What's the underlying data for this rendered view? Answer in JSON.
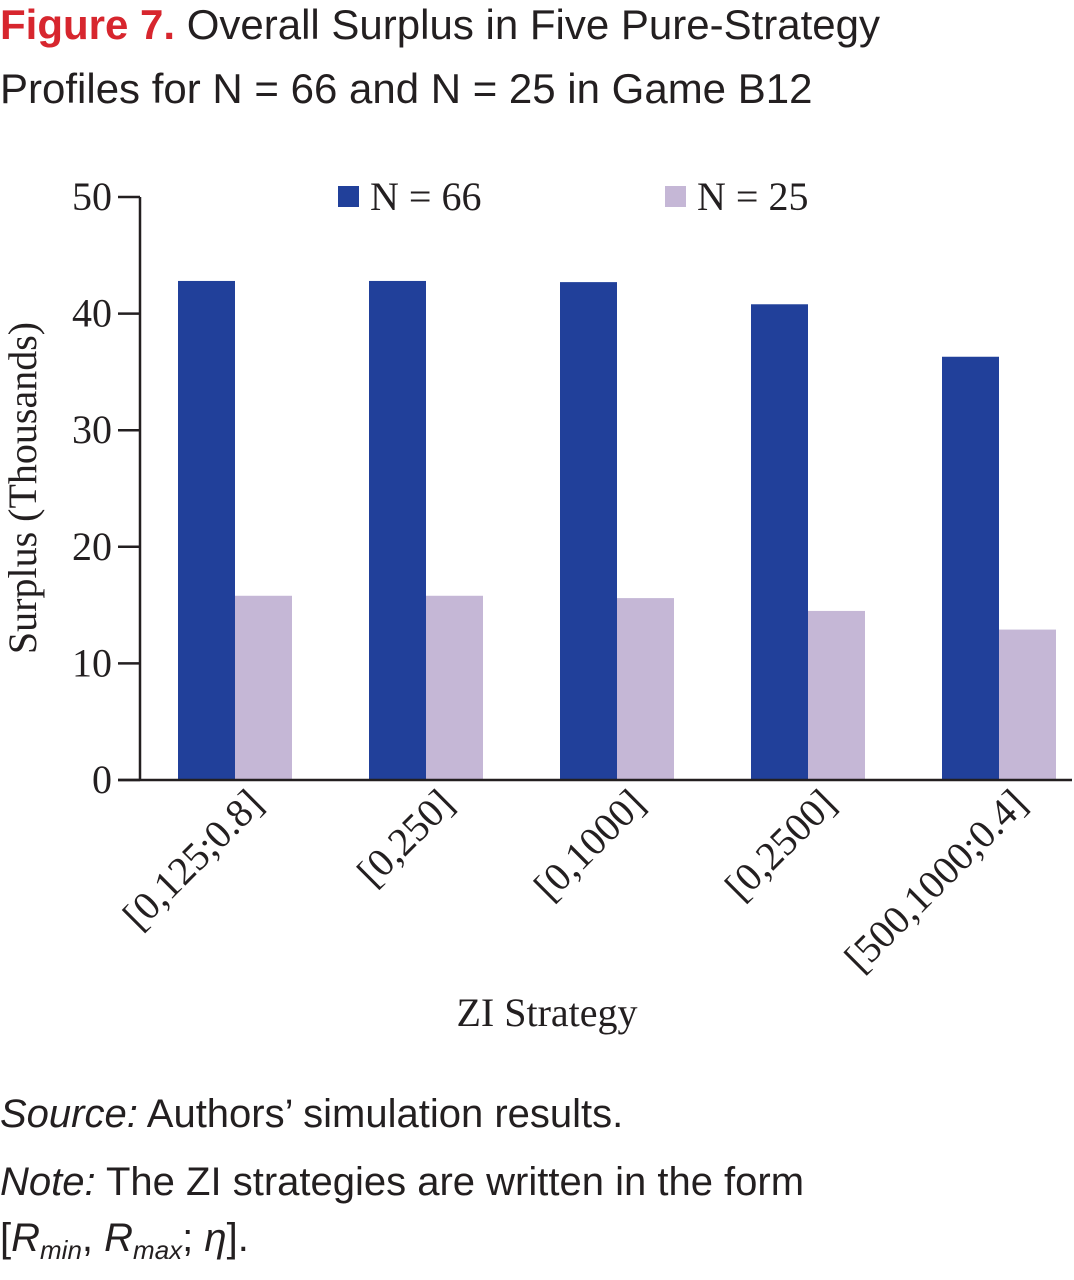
{
  "heading": {
    "label": "Figure 7.",
    "line1": "Overall Surplus in Five Pure-Strategy",
    "line2": "Profiles for N = 66 and N = 25 in Game B12",
    "label_color": "#d7262e"
  },
  "chart_data": {
    "type": "bar",
    "categories": [
      "[0,125;0.8]",
      "[0,250]",
      "[0,1000]",
      "[0,2500]",
      "[500,1000;0.4]"
    ],
    "series": [
      {
        "name": "N = 66",
        "values": [
          42.8,
          42.8,
          42.7,
          40.8,
          36.3
        ],
        "color": "#21409a"
      },
      {
        "name": "N = 25",
        "values": [
          15.8,
          15.8,
          15.6,
          14.5,
          12.9
        ],
        "color": "#c5b7d6"
      }
    ],
    "xlabel": "ZI Strategy",
    "ylabel": "Surplus (Thousands)",
    "ylim": [
      0,
      50
    ],
    "yticks": [
      0,
      10,
      20,
      30,
      40,
      50
    ],
    "grid": false,
    "legend": "top"
  },
  "footer": {
    "source_label": "Source:",
    "source_text": " Authors’ simulation results.",
    "note_label": "Note:",
    "note_text": " The ZI strategies are written in the form",
    "formula": {
      "open": "[",
      "r1": "R",
      "sub1": "min",
      "comma": ", ",
      "r2": "R",
      "sub2": "max",
      "semi": "; ",
      "eta": "η",
      "close": "]."
    }
  }
}
